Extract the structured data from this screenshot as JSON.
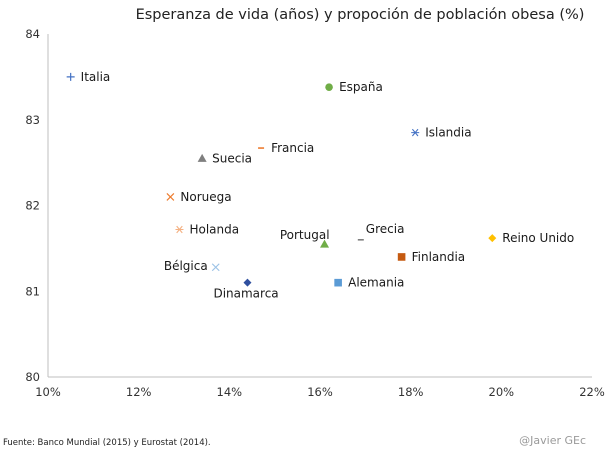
{
  "chart_data": {
    "type": "scatter",
    "title": "Esperanza de vida (años) y propoción de población obesa (%)",
    "xlabel": "",
    "ylabel": "",
    "xlim": [
      10,
      22
    ],
    "ylim": [
      80,
      84
    ],
    "x_ticks": [
      "10%",
      "12%",
      "14%",
      "16%",
      "18%",
      "20%",
      "22%"
    ],
    "x_tick_values": [
      10,
      12,
      14,
      16,
      18,
      20,
      22
    ],
    "y_ticks": [
      "80",
      "81",
      "82",
      "83",
      "84"
    ],
    "y_tick_values": [
      80,
      81,
      82,
      83,
      84
    ],
    "grid": false,
    "points": [
      {
        "name": "Italia",
        "x": 10.5,
        "y": 83.5,
        "marker": "plus",
        "color": "#4472c4",
        "label_side": "right"
      },
      {
        "name": "España",
        "x": 16.2,
        "y": 83.38,
        "marker": "circle",
        "color": "#70ad47",
        "label_side": "right"
      },
      {
        "name": "Islandia",
        "x": 18.1,
        "y": 82.85,
        "marker": "asterisk",
        "color": "#4472c4",
        "label_side": "right"
      },
      {
        "name": "Francia",
        "x": 14.7,
        "y": 82.67,
        "marker": "dash",
        "color": "#ed7d31",
        "label_side": "right"
      },
      {
        "name": "Suecia",
        "x": 13.4,
        "y": 82.55,
        "marker": "triangle",
        "color": "#7f7f7f",
        "label_side": "right"
      },
      {
        "name": "Noruega",
        "x": 12.7,
        "y": 82.1,
        "marker": "cross",
        "color": "#ed7d31",
        "label_side": "right"
      },
      {
        "name": "Holanda",
        "x": 12.9,
        "y": 81.72,
        "marker": "asterisk",
        "color": "#f4b183",
        "label_side": "right"
      },
      {
        "name": "Portugal",
        "x": 16.1,
        "y": 81.55,
        "marker": "triangle",
        "color": "#70ad47",
        "label_side": "top-left"
      },
      {
        "name": "Grecia",
        "x": 16.9,
        "y": 81.6,
        "marker": "dash",
        "color": "#7f7f7f",
        "label_side": "top-right"
      },
      {
        "name": "Reino Unido",
        "x": 19.8,
        "y": 81.62,
        "marker": "diamond",
        "color": "#ffc000",
        "label_side": "right"
      },
      {
        "name": "Finlandia",
        "x": 17.8,
        "y": 81.4,
        "marker": "square",
        "color": "#c55a11",
        "label_side": "right"
      },
      {
        "name": "Bélgica",
        "x": 13.7,
        "y": 81.28,
        "marker": "cross",
        "color": "#9dc3e6",
        "label_side": "left"
      },
      {
        "name": "Alemania",
        "x": 16.4,
        "y": 81.1,
        "marker": "square",
        "color": "#5b9bd5",
        "label_side": "right"
      },
      {
        "name": "Dinamarca",
        "x": 14.4,
        "y": 81.1,
        "marker": "diamond",
        "color": "#2f4f9f",
        "label_side": "below"
      }
    ]
  },
  "footer": {
    "source": "Fuente: Banco  Mundial  (2015) y Eurostat (2014).",
    "credit": "@Javier GEc"
  }
}
